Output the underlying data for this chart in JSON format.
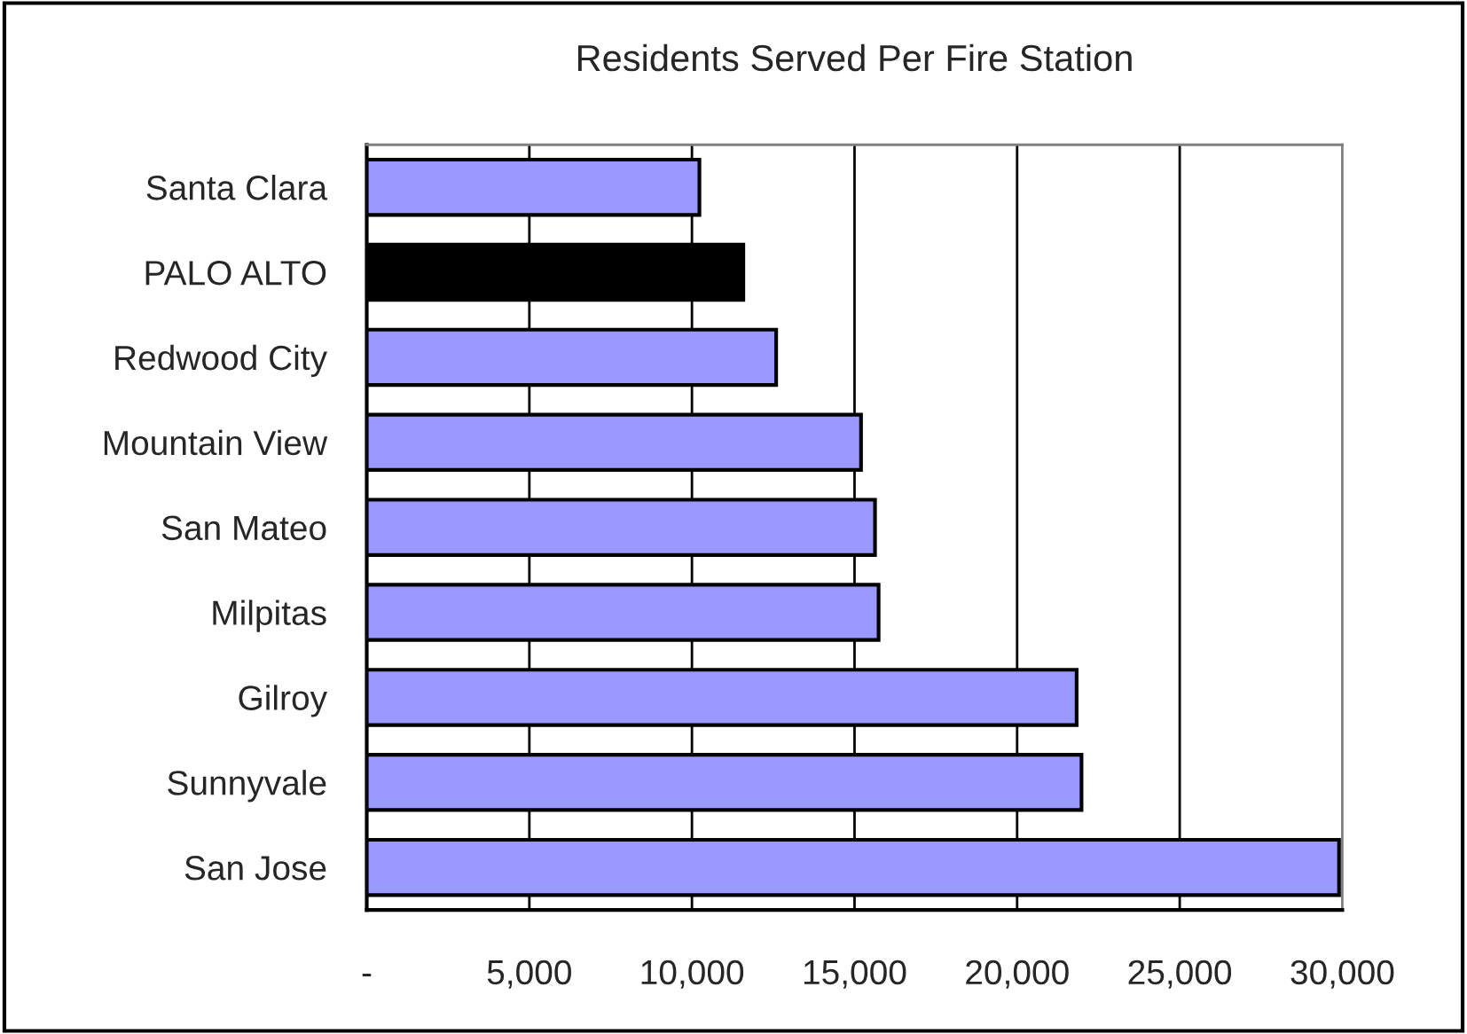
{
  "chart_data": {
    "type": "bar",
    "orientation": "horizontal",
    "title": "Residents Served Per Fire Station",
    "categories": [
      "Santa Clara",
      "PALO ALTO",
      "Redwood City",
      "Mountain View",
      "San Mateo",
      "Milpitas",
      "Gilroy",
      "Sunnyvale",
      "San Jose"
    ],
    "values": [
      10230,
      11580,
      12590,
      15200,
      15630,
      15740,
      21830,
      21980,
      29900
    ],
    "colors": [
      "#9999ff",
      "#000000",
      "#9999ff",
      "#9999ff",
      "#9999ff",
      "#9999ff",
      "#9999ff",
      "#9999ff",
      "#9999ff"
    ],
    "xlim": [
      0,
      30000
    ],
    "xticks": [
      {
        "value": 0,
        "label": "-"
      },
      {
        "value": 5000,
        "label": "5,000"
      },
      {
        "value": 10000,
        "label": "10,000"
      },
      {
        "value": 15000,
        "label": "15,000"
      },
      {
        "value": 20000,
        "label": "20,000"
      },
      {
        "value": 25000,
        "label": "25,000"
      },
      {
        "value": 30000,
        "label": "30,000"
      }
    ],
    "grid": "x",
    "legend": false
  }
}
